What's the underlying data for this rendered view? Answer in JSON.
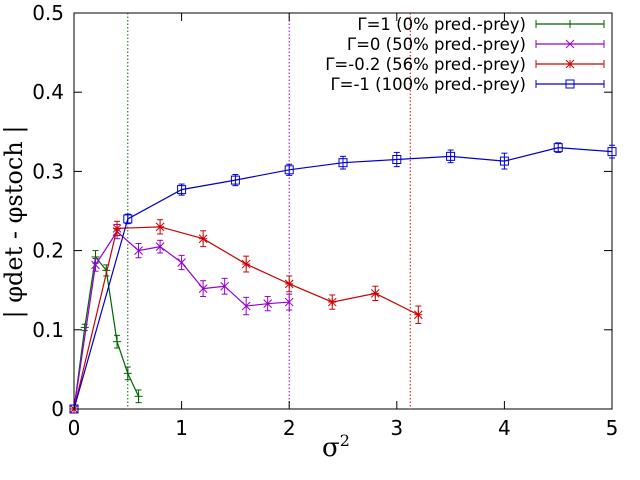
{
  "chart_data": {
    "type": "line",
    "title": "",
    "xlabel": "σ",
    "xlabel_superscript": "2",
    "ylabel": "| φdet - φstoch |",
    "xlim": [
      0,
      5
    ],
    "ylim": [
      0,
      0.5
    ],
    "xticks": [
      "0",
      "1",
      "2",
      "3",
      "4",
      "5"
    ],
    "yticks": [
      "0",
      "0.1",
      "0.2",
      "0.3",
      "0.4",
      "0.5"
    ],
    "legend_position": "top-right",
    "series": [
      {
        "name": "Γ=1 (0% pred.-prey)",
        "color": "#006400",
        "marker": "plus",
        "x": [
          0,
          0.1,
          0.2,
          0.3,
          0.4,
          0.5,
          0.6
        ],
        "y": [
          0,
          0.103,
          0.192,
          0.175,
          0.085,
          0.045,
          0.016
        ],
        "err": [
          0,
          0.004,
          0.008,
          0.007,
          0.008,
          0.008,
          0.008
        ]
      },
      {
        "name": "Γ=0 (50% pred.-prey)",
        "color": "#9400D3",
        "marker": "x",
        "x": [
          0,
          0.2,
          0.4,
          0.6,
          0.8,
          1.0,
          1.2,
          1.4,
          1.6,
          1.8,
          2.0
        ],
        "y": [
          0,
          0.182,
          0.224,
          0.2,
          0.205,
          0.185,
          0.152,
          0.155,
          0.13,
          0.133,
          0.135
        ],
        "err": [
          0,
          0.008,
          0.009,
          0.009,
          0.008,
          0.009,
          0.01,
          0.01,
          0.011,
          0.009,
          0.01
        ]
      },
      {
        "name": "Γ=-0.2 (56% pred.-prey)",
        "color": "#CC0000",
        "marker": "star",
        "x": [
          0,
          0.4,
          0.8,
          1.2,
          1.6,
          2.0,
          2.4,
          2.8,
          3.2
        ],
        "y": [
          0,
          0.228,
          0.23,
          0.215,
          0.183,
          0.158,
          0.135,
          0.146,
          0.119
        ],
        "err": [
          0,
          0.009,
          0.009,
          0.01,
          0.01,
          0.01,
          0.009,
          0.009,
          0.011
        ]
      },
      {
        "name": "Γ=-1 (100% pred.-prey)",
        "color": "#0000CC",
        "marker": "square",
        "x": [
          0,
          0.5,
          1.0,
          1.5,
          2.0,
          2.5,
          3.0,
          3.5,
          4.0,
          4.5,
          5.0
        ],
        "y": [
          0,
          0.24,
          0.277,
          0.289,
          0.302,
          0.311,
          0.315,
          0.319,
          0.313,
          0.33,
          0.325
        ],
        "err": [
          0,
          0.006,
          0.007,
          0.007,
          0.007,
          0.008,
          0.009,
          0.008,
          0.01,
          0.006,
          0.008
        ]
      }
    ],
    "vertical_lines": [
      {
        "x": 0.5,
        "color": "#006400"
      },
      {
        "x": 2.0,
        "color": "#9400D3"
      },
      {
        "x": 3.125,
        "color": "#CC0000"
      }
    ]
  }
}
